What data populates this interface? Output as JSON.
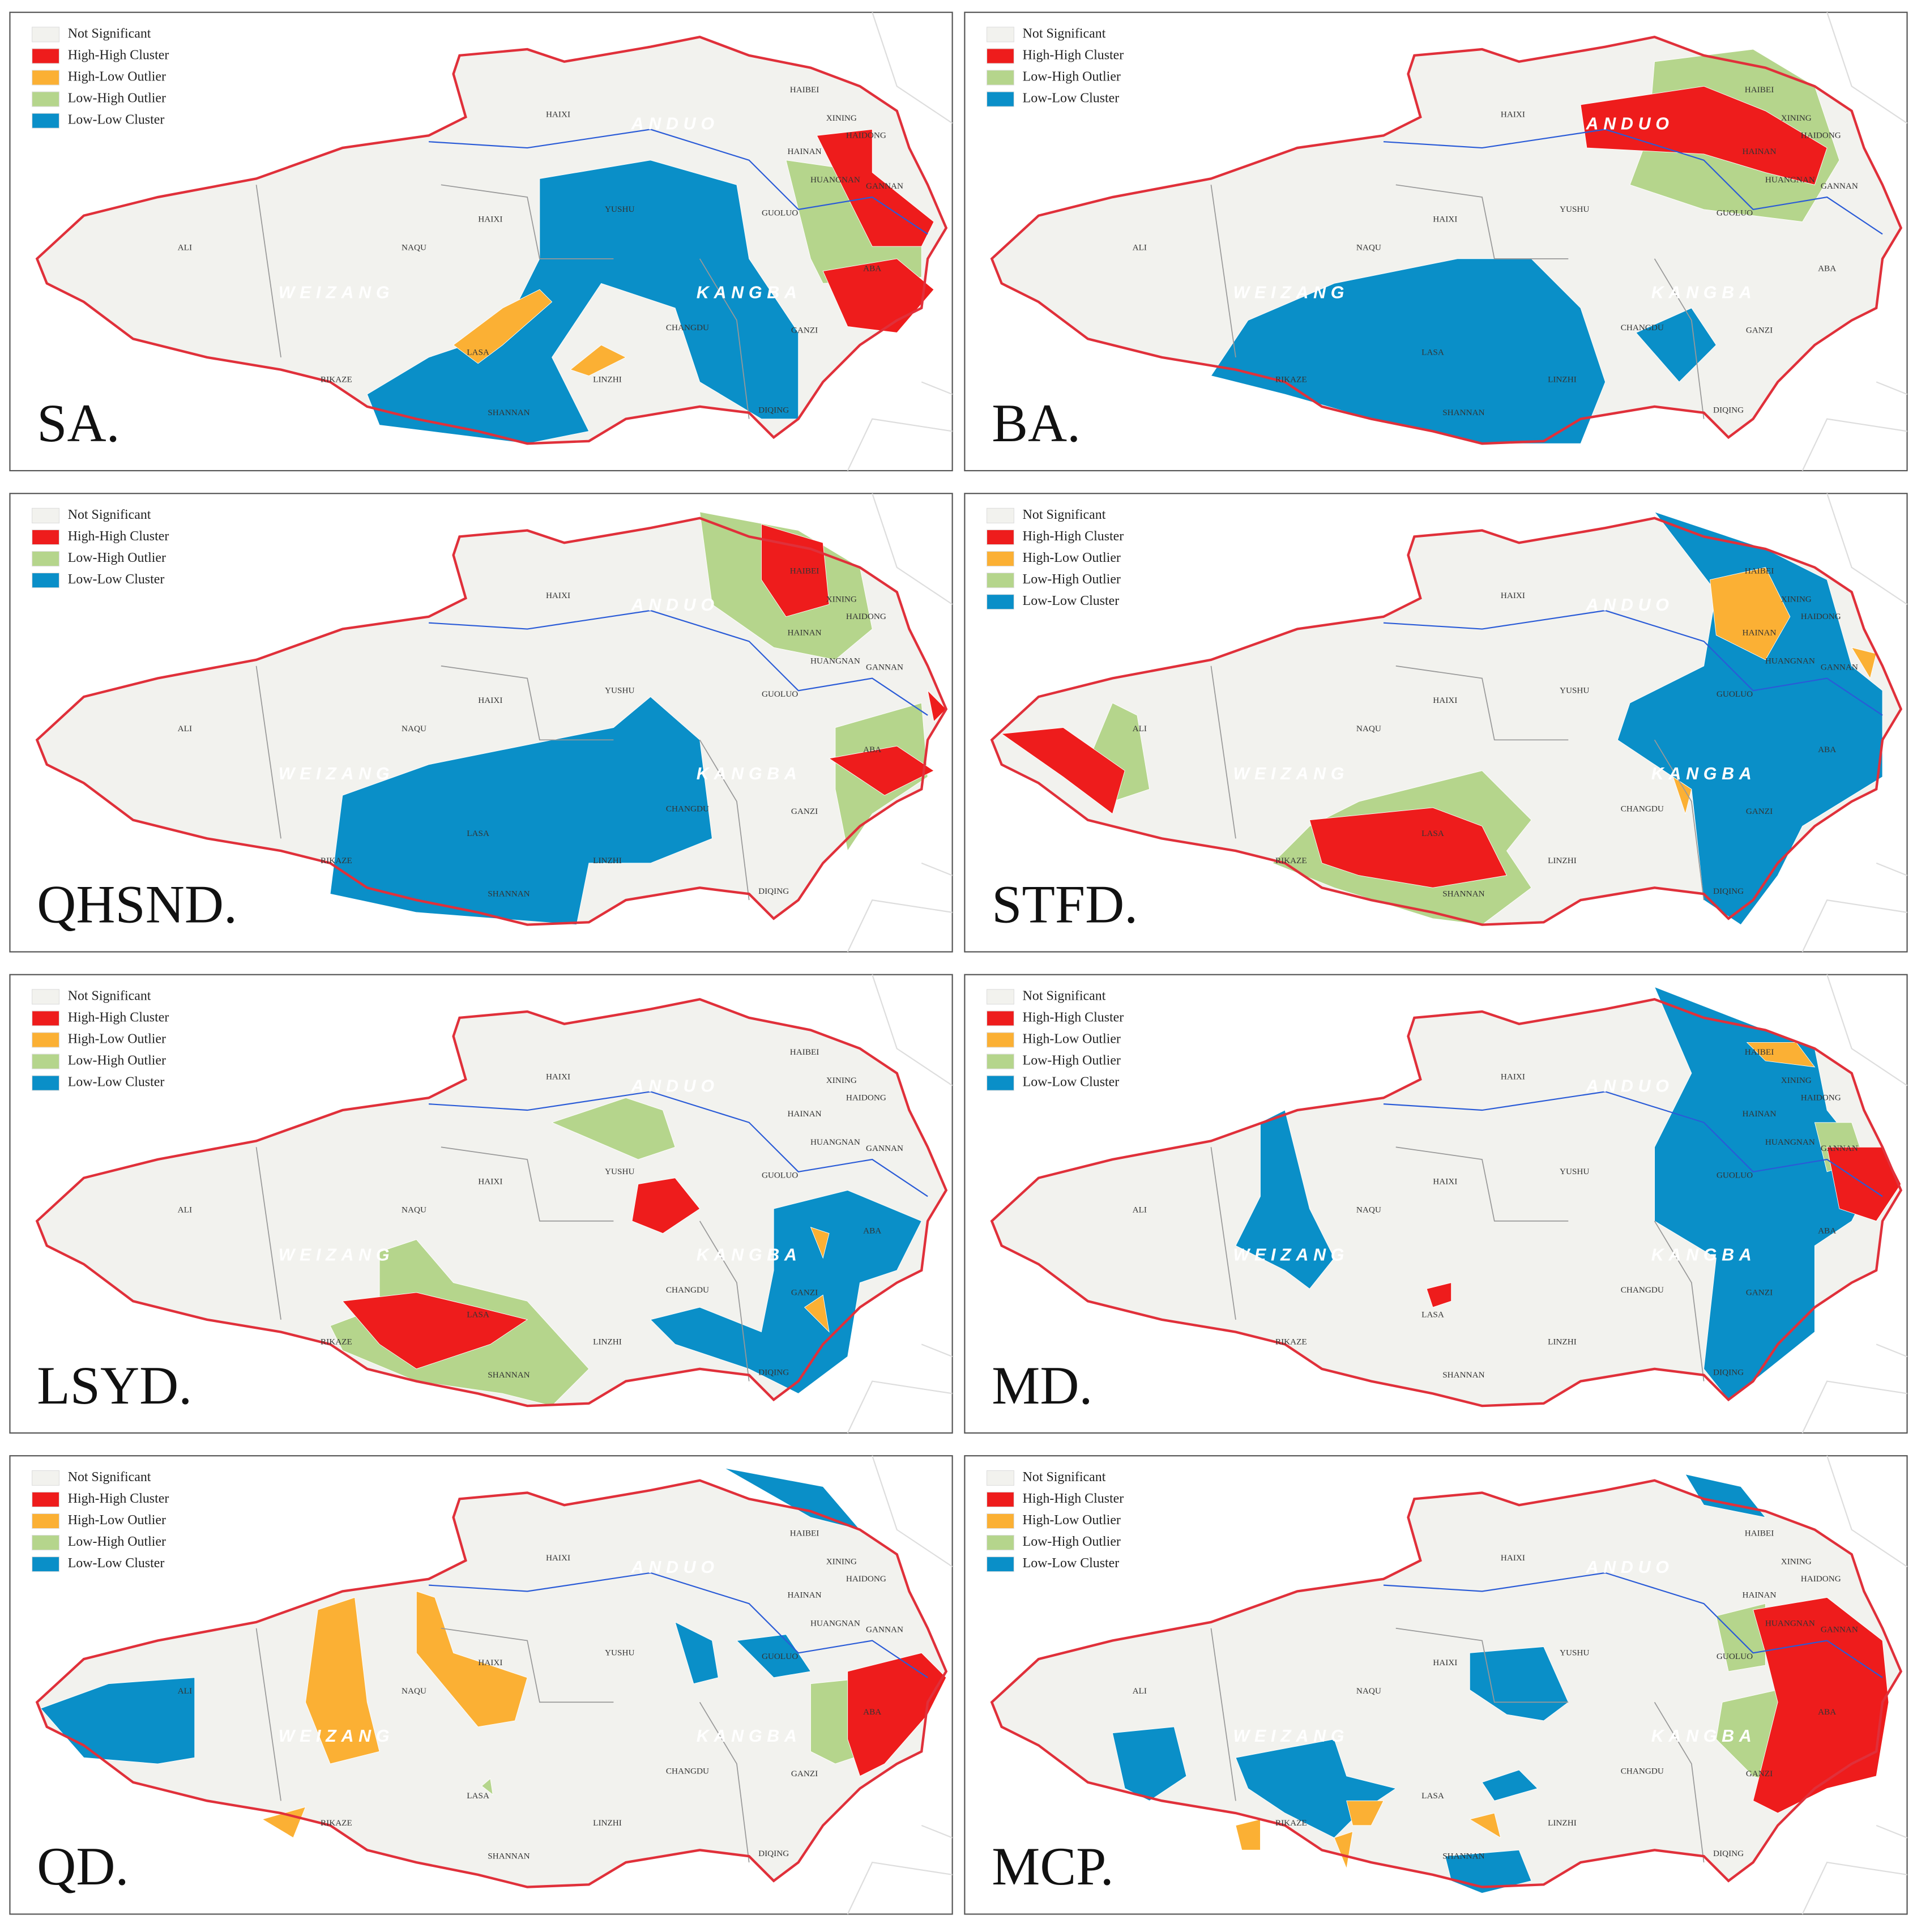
{
  "panels": [
    {
      "label": "SA.",
      "legend": [
        {
          "text": "Not Significant",
          "color": "#f2f2ee"
        },
        {
          "text": "High-High Cluster",
          "color": "#ee1c1c"
        },
        {
          "text": "High-Low Outlier",
          "color": "#fbb034"
        },
        {
          "text": "Low-High Outlier",
          "color": "#b5d58c"
        },
        {
          "text": "Low-Low Cluster",
          "color": "#0a8fc8"
        }
      ]
    },
    {
      "label": "BA.",
      "legend": [
        {
          "text": "Not Significant",
          "color": "#f2f2ee"
        },
        {
          "text": "High-High Cluster",
          "color": "#ee1c1c"
        },
        {
          "text": "Low-High Outlier",
          "color": "#b5d58c"
        },
        {
          "text": "Low-Low Cluster",
          "color": "#0a8fc8"
        }
      ]
    },
    {
      "label": "QHSND.",
      "legend": [
        {
          "text": "Not Significant",
          "color": "#f2f2ee"
        },
        {
          "text": "High-High Cluster",
          "color": "#ee1c1c"
        },
        {
          "text": "Low-High Outlier",
          "color": "#b5d58c"
        },
        {
          "text": "Low-Low Cluster",
          "color": "#0a8fc8"
        }
      ]
    },
    {
      "label": "STFD.",
      "legend": [
        {
          "text": "Not Significant",
          "color": "#f2f2ee"
        },
        {
          "text": "High-High Cluster",
          "color": "#ee1c1c"
        },
        {
          "text": "High-Low Outlier",
          "color": "#fbb034"
        },
        {
          "text": "Low-High Outlier",
          "color": "#b5d58c"
        },
        {
          "text": "Low-Low Cluster",
          "color": "#0a8fc8"
        }
      ]
    },
    {
      "label": "LSYD.",
      "legend": [
        {
          "text": "Not Significant",
          "color": "#f2f2ee"
        },
        {
          "text": "High-High Cluster",
          "color": "#ee1c1c"
        },
        {
          "text": "High-Low Outlier",
          "color": "#fbb034"
        },
        {
          "text": "Low-High Outlier",
          "color": "#b5d58c"
        },
        {
          "text": "Low-Low Cluster",
          "color": "#0a8fc8"
        }
      ]
    },
    {
      "label": "MD.",
      "legend": [
        {
          "text": "Not Significant",
          "color": "#f2f2ee"
        },
        {
          "text": "High-High Cluster",
          "color": "#ee1c1c"
        },
        {
          "text": "High-Low Outlier",
          "color": "#fbb034"
        },
        {
          "text": "Low-High Outlier",
          "color": "#b5d58c"
        },
        {
          "text": "Low-Low Cluster",
          "color": "#0a8fc8"
        }
      ]
    },
    {
      "label": "QD.",
      "legend": [
        {
          "text": "Not Significant",
          "color": "#f2f2ee"
        },
        {
          "text": "High-High Cluster",
          "color": "#ee1c1c"
        },
        {
          "text": "High-Low Outlier",
          "color": "#fbb034"
        },
        {
          "text": "Low-High Outlier",
          "color": "#b5d58c"
        },
        {
          "text": "Low-Low Cluster",
          "color": "#0a8fc8"
        }
      ]
    },
    {
      "label": "MCP.",
      "legend": [
        {
          "text": "Not Significant",
          "color": "#f2f2ee"
        },
        {
          "text": "High-High Cluster",
          "color": "#ee1c1c"
        },
        {
          "text": "High-Low Outlier",
          "color": "#fbb034"
        },
        {
          "text": "Low-High Outlier",
          "color": "#b5d58c"
        },
        {
          "text": "Low-Low Cluster",
          "color": "#0a8fc8"
        }
      ]
    }
  ],
  "place_names": [
    "HAIXI",
    "HAIBEI",
    "XINING",
    "HAIDONG",
    "HAINAN",
    "HUANGNAN",
    "GANNAN",
    "GUOLUO",
    "YUSHU",
    "HAIXI",
    "ALI",
    "NAQU",
    "CHANGDU",
    "ABA",
    "GANZI",
    "LASA",
    "RIKAZE",
    "SHANNAN",
    "LINZHI",
    "DIQING"
  ],
  "region_names": [
    "ANDUO",
    "WEIZANG",
    "KANGBA"
  ]
}
